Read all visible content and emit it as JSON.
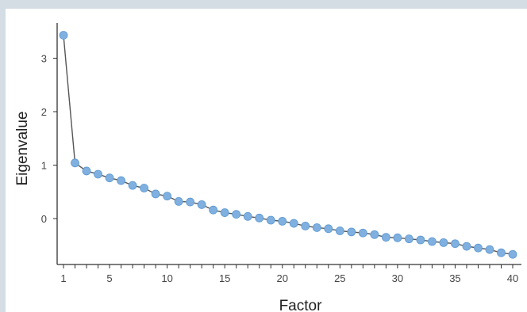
{
  "chart_data": {
    "type": "line",
    "title": "",
    "xlabel": "Factor",
    "ylabel": "Eigenvalue",
    "xlim": [
      1,
      40
    ],
    "ylim": [
      -0.75,
      3.6
    ],
    "x_ticks": [
      1,
      5,
      10,
      15,
      20,
      25,
      30,
      35,
      40
    ],
    "y_ticks": [
      0,
      1,
      2,
      3
    ],
    "grid": false,
    "colors": {
      "line": "#555555",
      "marker": "#7fb0e0",
      "marker_edge": "#5d98d2",
      "axis": "#333333"
    },
    "series": [
      {
        "x": [
          1,
          2,
          3,
          4,
          5,
          6,
          7,
          8,
          9,
          10,
          11,
          12,
          13,
          14,
          15,
          16,
          17,
          18,
          19,
          20,
          21,
          22,
          23,
          24,
          25,
          26,
          27,
          28,
          29,
          30,
          31,
          32,
          33,
          34,
          35,
          36,
          37,
          38,
          39,
          40
        ],
        "values": [
          3.43,
          1.04,
          0.89,
          0.83,
          0.76,
          0.71,
          0.62,
          0.57,
          0.46,
          0.42,
          0.32,
          0.31,
          0.26,
          0.16,
          0.11,
          0.08,
          0.04,
          0.01,
          -0.03,
          -0.05,
          -0.09,
          -0.14,
          -0.17,
          -0.19,
          -0.23,
          -0.25,
          -0.27,
          -0.3,
          -0.35,
          -0.36,
          -0.38,
          -0.4,
          -0.43,
          -0.45,
          -0.47,
          -0.52,
          -0.55,
          -0.58,
          -0.64,
          -0.67
        ]
      }
    ]
  }
}
